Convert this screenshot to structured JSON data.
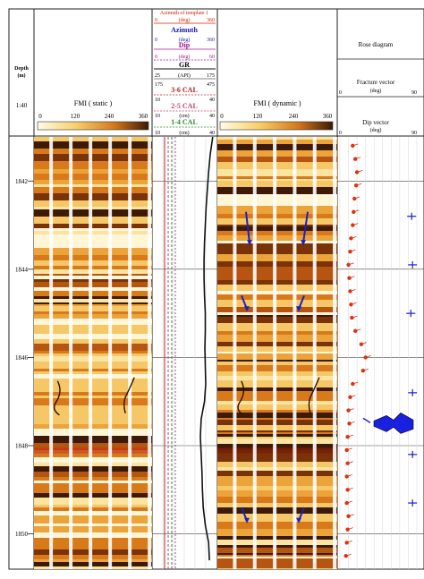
{
  "colors": {
    "azimuth": "#cc2200",
    "azimuth_label": "#1a1aa8",
    "dip": "#a0148c",
    "gr": "#111111",
    "cal36": "#b02020",
    "cal25": "#c04070",
    "cal14": "#2a8a2a",
    "vector": "#1a20c8",
    "dip_point": "#e03010",
    "rose": "#1a20e0"
  },
  "depth_header": {
    "title": "Depth",
    "unit": "(m)",
    "scale": "1:40"
  },
  "tracks": {
    "fmi_static": {
      "title": "FMI ( static )",
      "ticks": [
        "0",
        "120",
        "240",
        "360"
      ]
    },
    "fmi_dynamic": {
      "title": "FMI ( dynamic )",
      "ticks": [
        "0",
        "120",
        "240",
        "360"
      ]
    },
    "curves": [
      {
        "name": "Azimuth of template 1",
        "min": "0",
        "unit": "(deg)",
        "max": "360",
        "style": "azimuth_small"
      },
      {
        "name": "Azimuth",
        "min": "0",
        "unit": "(deg)",
        "max": "360",
        "style": "azimuth"
      },
      {
        "name": "Dip",
        "min": "0",
        "unit": "(deg)",
        "max": "60",
        "style": "dip"
      },
      {
        "name": "GR",
        "min": "25",
        "unit": "(API)",
        "max": "175",
        "style": "gr"
      },
      {
        "name": "3-6 CAL",
        "min": "175",
        "unit": "",
        "max": "475",
        "style": "cal36"
      },
      {
        "name": "2-5 CAL",
        "min": "10",
        "unit": "(cm)",
        "max": "40",
        "style": "cal25"
      },
      {
        "name": "1-4 CAL",
        "min": "10",
        "unit": "(cm)",
        "max": "40",
        "style": "cal14"
      }
    ],
    "cal_bottom": {
      "min": "10",
      "unit": "(cm)",
      "max": "40"
    },
    "right_panel": {
      "rose": "Rose diagram",
      "fracture": {
        "title": "Fracture vector",
        "unit": "(deg)",
        "min": "0",
        "max": "90"
      },
      "dip": {
        "title": "Dip vector",
        "unit": "(deg)",
        "min": "0",
        "max": "90"
      }
    }
  },
  "chart_data": {
    "type": "well-log",
    "depth_range": [
      1841.0,
      1850.8
    ],
    "depth_ticks": [
      "1842",
      "1844",
      "1846",
      "1848",
      "1850"
    ],
    "depth_tick_values": [
      1842,
      1844,
      1846,
      1848,
      1850
    ],
    "gr_curve": {
      "depth": [
        1841.0,
        1841.4,
        1841.8,
        1842.2,
        1842.6,
        1843.0,
        1843.4,
        1843.8,
        1844.2,
        1844.6,
        1845.0,
        1845.4,
        1845.8,
        1846.2,
        1846.6,
        1847.0,
        1847.4,
        1847.8,
        1848.2,
        1848.6,
        1849.0,
        1849.4,
        1849.8,
        1850.2,
        1850.6
      ],
      "value": [
        168,
        162,
        158,
        155,
        152,
        150,
        148,
        147,
        147,
        148,
        150,
        150,
        149,
        150,
        151,
        148,
        140,
        138,
        140,
        142,
        143,
        145,
        150,
        158,
        160
      ]
    },
    "dip_points": {
      "depth": [
        1841.2,
        1841.5,
        1841.8,
        1842.1,
        1842.4,
        1842.7,
        1843.0,
        1843.3,
        1843.6,
        1843.9,
        1844.2,
        1844.5,
        1844.8,
        1845.1,
        1845.4,
        1845.7,
        1846.0,
        1846.3,
        1846.6,
        1846.9,
        1847.2,
        1847.5,
        1847.8,
        1848.1,
        1848.4,
        1848.7,
        1849.0,
        1849.3,
        1849.6,
        1849.9,
        1850.2,
        1850.5
      ],
      "dip_deg": [
        15,
        18,
        20,
        19,
        17,
        16,
        15,
        13,
        12,
        10,
        11,
        12,
        13,
        14,
        18,
        25,
        30,
        27,
        15,
        12,
        10,
        11,
        9,
        8,
        9,
        8,
        9,
        8,
        10,
        9,
        8,
        7
      ]
    },
    "fracture_vectors": {
      "depth": [
        1842.8,
        1843.9,
        1845.0,
        1846.8,
        1848.2,
        1849.3
      ],
      "dip_deg": [
        85,
        86,
        84,
        86,
        86,
        86
      ]
    },
    "rose_depth": 1847.5,
    "fmi_sinusoid_arrows_depth": [
      1843.0,
      1844.8,
      1849.5
    ]
  }
}
